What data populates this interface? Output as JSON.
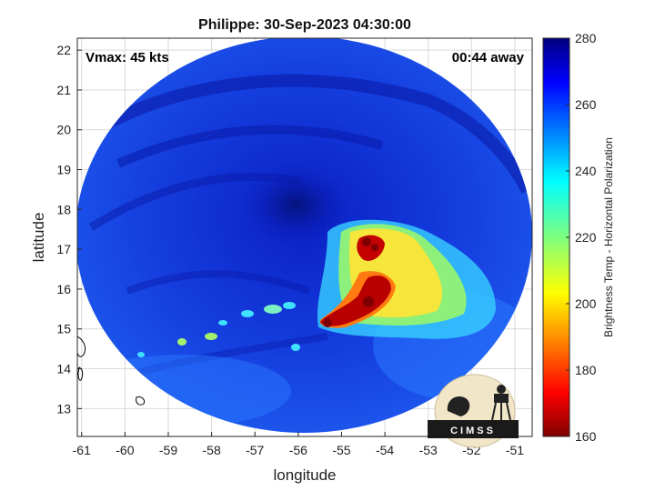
{
  "map": {
    "title": "Philippe: 30-Sep-2023 04:30:00",
    "vmax_label": "Vmax: 45 kts",
    "time_offset_label": "00:44 away",
    "xlabel": "longitude",
    "ylabel": "latitude",
    "lon_range": [
      -61.1,
      -50.6
    ],
    "lat_range": [
      12.3,
      22.3
    ],
    "lon_ticks": [
      "-61",
      "-60",
      "-59",
      "-58",
      "-57",
      "-56",
      "-55",
      "-54",
      "-53",
      "-52",
      "-51"
    ],
    "lat_ticks": [
      "13",
      "14",
      "15",
      "16",
      "17",
      "18",
      "19",
      "20",
      "21",
      "22"
    ],
    "grid": true,
    "logo_text": "CIMSS"
  },
  "colorbar": {
    "label": "Brightness Temp - Horizontal Polarization",
    "min": 160,
    "max": 280,
    "ticks": [
      "160",
      "180",
      "200",
      "220",
      "240",
      "260",
      "280"
    ],
    "colormap": "jet"
  }
}
